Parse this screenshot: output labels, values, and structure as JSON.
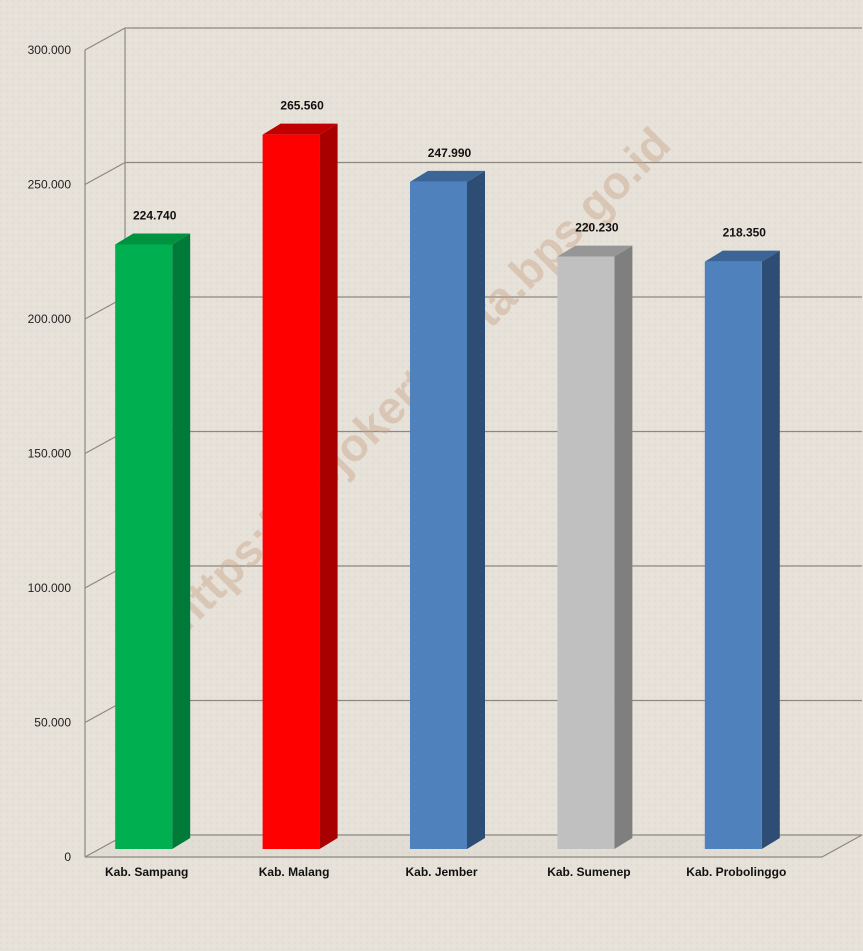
{
  "chart_data": {
    "type": "bar",
    "categories": [
      "Kab. Sampang",
      "Kab. Malang",
      "Kab. Jember",
      "Kab. Sumenep",
      "Kab. Probolinggo"
    ],
    "values": [
      224740,
      265560,
      247990,
      220230,
      218350
    ],
    "value_labels": [
      "224.740",
      "265.560",
      "247.990",
      "220.230",
      "218.350"
    ],
    "yticks": [
      "0",
      "50.000",
      "100.000",
      "150.000",
      "200.000",
      "250.000",
      "300.000"
    ],
    "ylim": [
      0,
      300000
    ],
    "title": "",
    "xlabel": "",
    "ylabel": "",
    "grid": true,
    "legend": "none",
    "colors": [
      {
        "face": "#00b050",
        "side": "#007a38",
        "top": "#00933f"
      },
      {
        "face": "#ff0000",
        "side": "#a80000",
        "top": "#c00000"
      },
      {
        "face": "#4f81bd",
        "side": "#2e4d75",
        "top": "#3a6596"
      },
      {
        "face": "#c0c0c0",
        "side": "#7f7f7f",
        "top": "#969696"
      },
      {
        "face": "#4f81bd",
        "side": "#2e4d75",
        "top": "#3a6596"
      }
    ],
    "watermark": "https://mojokertokota.bps.go.id"
  }
}
